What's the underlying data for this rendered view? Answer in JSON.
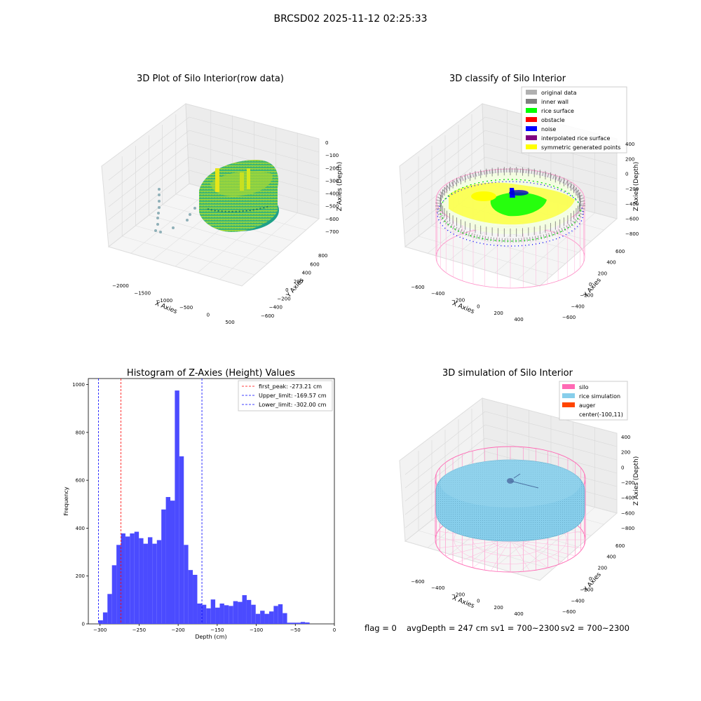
{
  "figure": {
    "suptitle": "BRCSD02 2025-11-12 02:25:33",
    "footer": {
      "flag": "flag = 0",
      "avg_depth": "avgDepth = 247 cm",
      "sv1": "sv1 = 700~2300",
      "sv2": "sv2 = 700~2300"
    }
  },
  "panels": {
    "raw": {
      "title": "3D Plot of Silo Interior(row data)",
      "xlabel": "X Axies",
      "ylabel": "Y Axies",
      "zlabel": "Z Axies (Depth)",
      "xticks": [
        "−2000",
        "−1500",
        "−1000",
        "−500",
        "0",
        "500"
      ],
      "yticks": [
        "−600",
        "−400",
        "−200",
        "0",
        "200",
        "400",
        "600",
        "800"
      ],
      "zticks": [
        "0",
        "−100",
        "−200",
        "−300",
        "−400",
        "−500",
        "−600",
        "−700"
      ]
    },
    "classify": {
      "title": "3D classify of Silo Interior",
      "xlabel": "X Axies",
      "ylabel": "Y Axies",
      "zlabel": "Z Axies (Depth)",
      "xticks": [
        "−600",
        "−400",
        "−200",
        "0",
        "200",
        "400"
      ],
      "yticks": [
        "−600",
        "−400",
        "−200",
        "0",
        "200",
        "400",
        "600"
      ],
      "zticks": [
        "400",
        "200",
        "0",
        "−200",
        "−400",
        "−600",
        "−800"
      ],
      "legend": [
        {
          "label": "original data",
          "color": "#b0b0b0"
        },
        {
          "label": "inner wall",
          "color": "#808080"
        },
        {
          "label": "rice surface",
          "color": "#00ff00"
        },
        {
          "label": "obstacle",
          "color": "#ff0000"
        },
        {
          "label": "noise",
          "color": "#0000ff"
        },
        {
          "label": "interpolated rice surface",
          "color": "#800080"
        },
        {
          "label": "symmetric generated points",
          "color": "#ffff00"
        }
      ]
    },
    "simulation": {
      "title": "3D simulation of Silo Interior",
      "xlabel": "X Axies",
      "ylabel": "Y Axies",
      "zlabel": "Z Axies (Depth)",
      "xticks": [
        "−600",
        "−400",
        "−200",
        "0",
        "200",
        "400"
      ],
      "yticks": [
        "−600",
        "−400",
        "−200",
        "0",
        "200",
        "400",
        "600"
      ],
      "zticks": [
        "400",
        "200",
        "0",
        "−200",
        "−400",
        "−600",
        "−800"
      ],
      "legend": [
        {
          "label": "silo",
          "color": "#ff69b4"
        },
        {
          "label": "rice simulation",
          "color": "#87ceeb"
        },
        {
          "label": "auger",
          "color": "#ff4500"
        },
        {
          "label": "center(-100,11)",
          "color": "none"
        }
      ]
    }
  },
  "chart_data": {
    "type": "bar",
    "title": "Histogram of Z-Axies (Height) Values",
    "xlabel": "Depth (cm)",
    "ylabel": "Frequency",
    "xlim": [
      -315,
      0
    ],
    "ylim": [
      0,
      1025
    ],
    "xticks": [
      -300,
      -250,
      -200,
      -150,
      -100,
      -50,
      0
    ],
    "yticks": [
      0,
      200,
      400,
      600,
      800,
      1000
    ],
    "bar_color": "#4b4bff",
    "bins_start": -302,
    "bin_width": 5.75,
    "values": [
      15,
      48,
      125,
      245,
      330,
      378,
      365,
      378,
      385,
      358,
      335,
      362,
      335,
      350,
      478,
      530,
      515,
      975,
      700,
      330,
      225,
      205,
      85,
      80,
      65,
      102,
      68,
      85,
      78,
      75,
      95,
      92,
      120,
      100,
      80,
      42,
      55,
      42,
      52,
      75,
      82,
      45,
      5,
      5,
      5,
      8,
      6
    ],
    "vlines": [
      {
        "name": "first_peak: -273.21 cm",
        "x": -273.21,
        "color": "#ff0000"
      },
      {
        "name": "Upper_limit: -169.57 cm",
        "x": -169.57,
        "color": "#0000ff"
      },
      {
        "name": "Lower_limit: -302.00 cm",
        "x": -302.0,
        "color": "#0000ff"
      }
    ]
  }
}
